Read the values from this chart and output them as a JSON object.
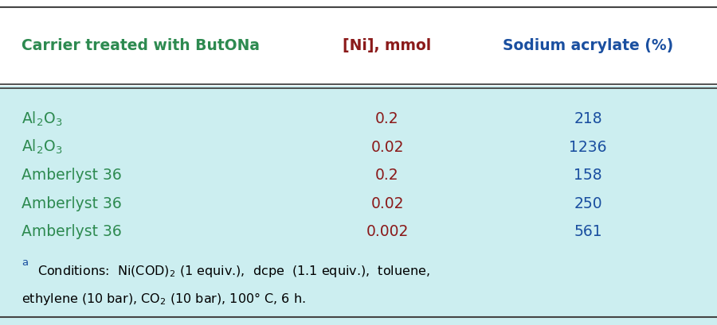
{
  "bg_color": "#cceef0",
  "outer_bg": "#ffffff",
  "header_col1": "Carrier treated with ButONa",
  "header_col2": "[Ni], mmol",
  "header_col3": "Sodium acrylate (%)",
  "header_col1_color": "#2d8a50",
  "header_col2_color": "#8b1a1a",
  "header_col3_color": "#1a4fa0",
  "col1_color": "#2d8a50",
  "col2_color": "#8b1a1a",
  "col3_color": "#1a4fa0",
  "footnote_color": "#000000",
  "footnote_superscript_color": "#1a4fa0",
  "rows": [
    {
      "col1": "Al$_2$O$_3$",
      "col2": "0.2",
      "col3": "218"
    },
    {
      "col1": "Al$_2$O$_3$",
      "col2": "0.02",
      "col3": "1236"
    },
    {
      "col1": "Amberlyst 36",
      "col2": "0.2",
      "col3": "158"
    },
    {
      "col1": "Amberlyst 36",
      "col2": "0.02",
      "col3": "250"
    },
    {
      "col1": "Amberlyst 36",
      "col2": "0.002",
      "col3": "561"
    }
  ],
  "header_fontsize": 13.5,
  "cell_fontsize": 13.5,
  "footnote_fontsize": 11.5
}
